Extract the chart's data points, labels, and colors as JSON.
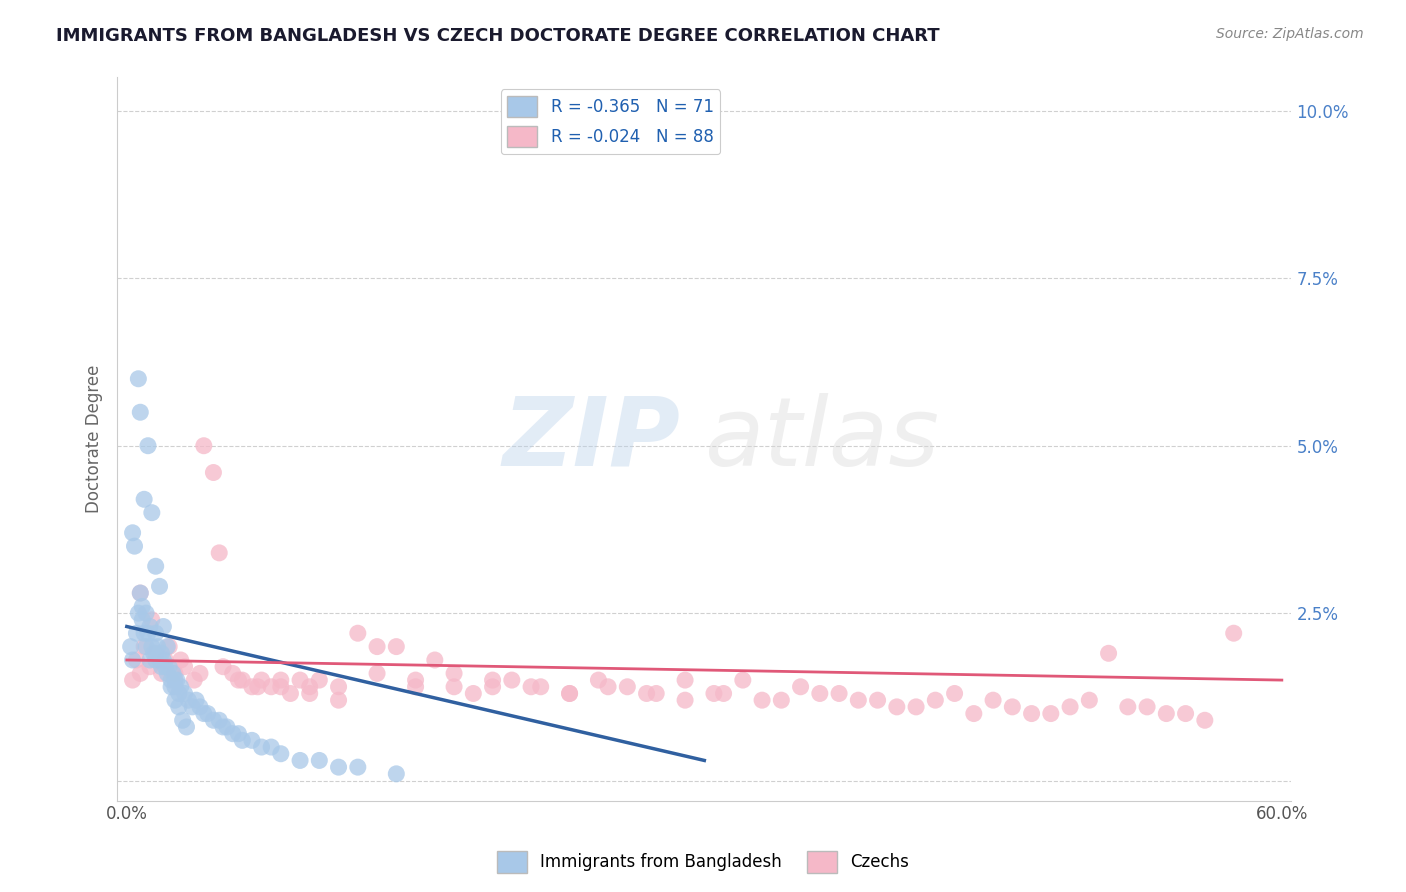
{
  "title": "IMMIGRANTS FROM BANGLADESH VS CZECH DOCTORATE DEGREE CORRELATION CHART",
  "source_text": "Source: ZipAtlas.com",
  "ylabel": "Doctorate Degree",
  "xlim": [
    -0.005,
    0.605
  ],
  "ylim": [
    -0.003,
    0.105
  ],
  "xticks": [
    0.0,
    0.6
  ],
  "xticklabels": [
    "0.0%",
    "60.0%"
  ],
  "yticks": [
    0.0,
    0.025,
    0.05,
    0.075,
    0.1
  ],
  "yticklabels": [
    "",
    "2.5%",
    "5.0%",
    "7.5%",
    "10.0%"
  ],
  "legend1_label": "R = -0.365   N = 71",
  "legend2_label": "R = -0.024   N = 88",
  "legend_label1": "Immigrants from Bangladesh",
  "legend_label2": "Czechs",
  "blue_color": "#a8c8e8",
  "pink_color": "#f5b8c8",
  "blue_line_color": "#3060a0",
  "pink_line_color": "#e05878",
  "grid_color": "#d0d0d0",
  "blue_scatter_x": [
    0.002,
    0.003,
    0.005,
    0.006,
    0.007,
    0.008,
    0.008,
    0.009,
    0.01,
    0.01,
    0.011,
    0.012,
    0.012,
    0.013,
    0.014,
    0.015,
    0.015,
    0.016,
    0.017,
    0.018,
    0.018,
    0.019,
    0.02,
    0.021,
    0.022,
    0.023,
    0.024,
    0.025,
    0.025,
    0.026,
    0.027,
    0.028,
    0.03,
    0.032,
    0.034,
    0.036,
    0.038,
    0.04,
    0.042,
    0.045,
    0.048,
    0.05,
    0.052,
    0.055,
    0.058,
    0.06,
    0.065,
    0.07,
    0.075,
    0.08,
    0.09,
    0.1,
    0.11,
    0.12,
    0.14,
    0.003,
    0.004,
    0.006,
    0.007,
    0.009,
    0.011,
    0.013,
    0.015,
    0.017,
    0.019,
    0.021,
    0.023,
    0.025,
    0.027,
    0.029,
    0.031
  ],
  "blue_scatter_y": [
    0.02,
    0.018,
    0.022,
    0.025,
    0.028,
    0.024,
    0.026,
    0.022,
    0.025,
    0.02,
    0.022,
    0.023,
    0.018,
    0.02,
    0.019,
    0.022,
    0.018,
    0.02,
    0.018,
    0.019,
    0.017,
    0.018,
    0.017,
    0.016,
    0.017,
    0.015,
    0.016,
    0.015,
    0.014,
    0.015,
    0.013,
    0.014,
    0.013,
    0.012,
    0.011,
    0.012,
    0.011,
    0.01,
    0.01,
    0.009,
    0.009,
    0.008,
    0.008,
    0.007,
    0.007,
    0.006,
    0.006,
    0.005,
    0.005,
    0.004,
    0.003,
    0.003,
    0.002,
    0.002,
    0.001,
    0.037,
    0.035,
    0.06,
    0.055,
    0.042,
    0.05,
    0.04,
    0.032,
    0.029,
    0.023,
    0.02,
    0.014,
    0.012,
    0.011,
    0.009,
    0.008
  ],
  "pink_scatter_x": [
    0.003,
    0.005,
    0.007,
    0.009,
    0.012,
    0.015,
    0.018,
    0.02,
    0.025,
    0.03,
    0.035,
    0.04,
    0.045,
    0.05,
    0.055,
    0.06,
    0.065,
    0.07,
    0.075,
    0.08,
    0.085,
    0.09,
    0.095,
    0.1,
    0.11,
    0.12,
    0.13,
    0.14,
    0.15,
    0.16,
    0.17,
    0.18,
    0.19,
    0.2,
    0.215,
    0.23,
    0.245,
    0.26,
    0.275,
    0.29,
    0.305,
    0.32,
    0.34,
    0.36,
    0.38,
    0.4,
    0.42,
    0.44,
    0.46,
    0.48,
    0.5,
    0.52,
    0.54,
    0.56,
    0.007,
    0.013,
    0.022,
    0.028,
    0.038,
    0.048,
    0.058,
    0.068,
    0.08,
    0.095,
    0.11,
    0.13,
    0.15,
    0.17,
    0.19,
    0.21,
    0.23,
    0.25,
    0.27,
    0.29,
    0.31,
    0.33,
    0.35,
    0.37,
    0.39,
    0.41,
    0.43,
    0.45,
    0.47,
    0.49,
    0.51,
    0.53,
    0.55,
    0.575
  ],
  "pink_scatter_y": [
    0.015,
    0.018,
    0.016,
    0.02,
    0.017,
    0.019,
    0.016,
    0.018,
    0.016,
    0.017,
    0.015,
    0.05,
    0.046,
    0.017,
    0.016,
    0.015,
    0.014,
    0.015,
    0.014,
    0.015,
    0.013,
    0.015,
    0.014,
    0.015,
    0.014,
    0.022,
    0.016,
    0.02,
    0.015,
    0.018,
    0.014,
    0.013,
    0.014,
    0.015,
    0.014,
    0.013,
    0.015,
    0.014,
    0.013,
    0.012,
    0.013,
    0.015,
    0.012,
    0.013,
    0.012,
    0.011,
    0.012,
    0.01,
    0.011,
    0.01,
    0.012,
    0.011,
    0.01,
    0.009,
    0.028,
    0.024,
    0.02,
    0.018,
    0.016,
    0.034,
    0.015,
    0.014,
    0.014,
    0.013,
    0.012,
    0.02,
    0.014,
    0.016,
    0.015,
    0.014,
    0.013,
    0.014,
    0.013,
    0.015,
    0.013,
    0.012,
    0.014,
    0.013,
    0.012,
    0.011,
    0.013,
    0.012,
    0.01,
    0.011,
    0.019,
    0.011,
    0.01,
    0.022
  ],
  "blue_trendline_x": [
    0.0,
    0.3
  ],
  "blue_trendline_y": [
    0.023,
    0.003
  ],
  "pink_trendline_x": [
    0.0,
    0.6
  ],
  "pink_trendline_y": [
    0.018,
    0.015
  ]
}
